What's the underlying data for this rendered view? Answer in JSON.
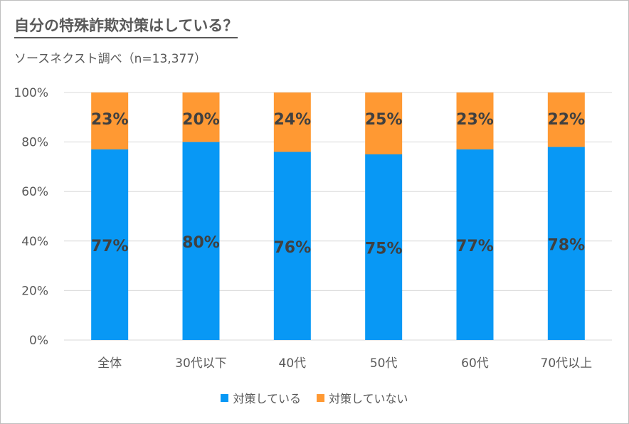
{
  "title": "自分の特殊詐欺対策はしている？",
  "subtitle": "ソースネクスト調べ（n=13,377）",
  "colors": {
    "yes": "#0898F5",
    "no": "#FF9933",
    "grid": "#d9d9d9",
    "axis_text": "#595959",
    "label_text": "#404040"
  },
  "chart_data": {
    "type": "bar",
    "stacked": true,
    "categories": [
      "全体",
      "30代以下",
      "40代",
      "50代",
      "60代",
      "70代以上"
    ],
    "series": [
      {
        "name": "対策している",
        "values": [
          77,
          80,
          76,
          75,
          77,
          78
        ],
        "labels": [
          "77%",
          "80%",
          "76%",
          "75%",
          "77%",
          "78%"
        ]
      },
      {
        "name": "対策していない",
        "values": [
          23,
          20,
          24,
          25,
          23,
          22
        ],
        "labels": [
          "23%",
          "20%",
          "24%",
          "25%",
          "23%",
          "22%"
        ]
      }
    ],
    "yticks": [
      "0%",
      "20%",
      "40%",
      "60%",
      "80%",
      "100%"
    ],
    "ylim": [
      0,
      100
    ],
    "grid": true,
    "legend": "bottom"
  }
}
